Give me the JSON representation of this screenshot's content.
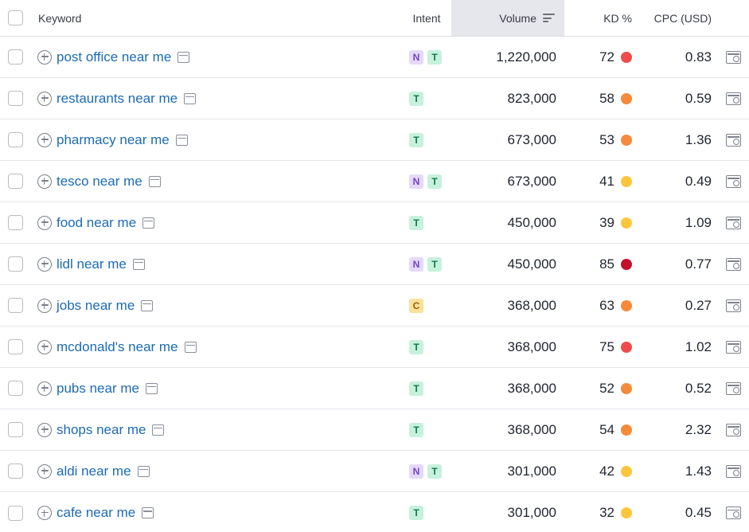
{
  "header": {
    "keyword": "Keyword",
    "intent": "Intent",
    "volume": "Volume",
    "kd": "KD %",
    "cpc": "CPC (USD)"
  },
  "colors": {
    "kd_very_hard": "#c4102d",
    "kd_hard": "#ee4c4c",
    "kd_difficult": "#f58a3b",
    "kd_possible": "#fbc63c",
    "sorted_column_bg": "#e6e7ec",
    "link": "#1c6bb5"
  },
  "rows": [
    {
      "keyword": "post office near me",
      "intent": [
        "N",
        "T"
      ],
      "volume": "1,220,000",
      "kd": "72",
      "kd_color": "#ee4c4c",
      "cpc": "0.83"
    },
    {
      "keyword": "restaurants near me",
      "intent": [
        "T"
      ],
      "volume": "823,000",
      "kd": "58",
      "kd_color": "#f58a3b",
      "cpc": "0.59"
    },
    {
      "keyword": "pharmacy near me",
      "intent": [
        "T"
      ],
      "volume": "673,000",
      "kd": "53",
      "kd_color": "#f58a3b",
      "cpc": "1.36"
    },
    {
      "keyword": "tesco near me",
      "intent": [
        "N",
        "T"
      ],
      "volume": "673,000",
      "kd": "41",
      "kd_color": "#fbc63c",
      "cpc": "0.49"
    },
    {
      "keyword": "food near me",
      "intent": [
        "T"
      ],
      "volume": "450,000",
      "kd": "39",
      "kd_color": "#fbc63c",
      "cpc": "1.09"
    },
    {
      "keyword": "lidl near me",
      "intent": [
        "N",
        "T"
      ],
      "volume": "450,000",
      "kd": "85",
      "kd_color": "#c4102d",
      "cpc": "0.77"
    },
    {
      "keyword": "jobs near me",
      "intent": [
        "C"
      ],
      "volume": "368,000",
      "kd": "63",
      "kd_color": "#f58a3b",
      "cpc": "0.27"
    },
    {
      "keyword": "mcdonald's near me",
      "intent": [
        "T"
      ],
      "volume": "368,000",
      "kd": "75",
      "kd_color": "#ee4c4c",
      "cpc": "1.02"
    },
    {
      "keyword": "pubs near me",
      "intent": [
        "T"
      ],
      "volume": "368,000",
      "kd": "52",
      "kd_color": "#f58a3b",
      "cpc": "0.52"
    },
    {
      "keyword": "shops near me",
      "intent": [
        "T"
      ],
      "volume": "368,000",
      "kd": "54",
      "kd_color": "#f58a3b",
      "cpc": "2.32"
    },
    {
      "keyword": "aldi near me",
      "intent": [
        "N",
        "T"
      ],
      "volume": "301,000",
      "kd": "42",
      "kd_color": "#fbc63c",
      "cpc": "1.43"
    },
    {
      "keyword": "cafe near me",
      "intent": [
        "T"
      ],
      "volume": "301,000",
      "kd": "32",
      "kd_color": "#fbc63c",
      "cpc": "0.45"
    }
  ]
}
